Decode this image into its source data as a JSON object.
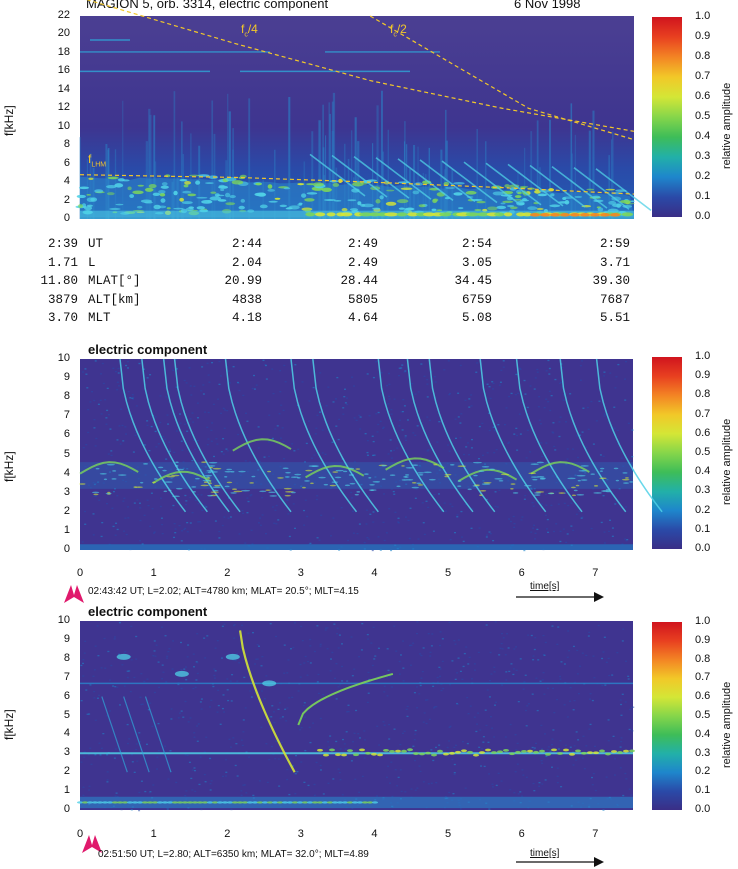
{
  "figure": {
    "title": "MAGION 5, orb. 3314, electric component",
    "date": "6 Nov 1998",
    "colorbar": {
      "label": "relative amplitude",
      "ticks": [
        "1.0",
        "0.9",
        "0.8",
        "0.7",
        "0.6",
        "0.5",
        "0.4",
        "0.3",
        "0.2",
        "0.1",
        "0.0"
      ],
      "colors": [
        "#d0141e",
        "#e84020",
        "#f38424",
        "#f2c828",
        "#d4e636",
        "#86d64a",
        "#3ebd58",
        "#22b0a8",
        "#1e86cc",
        "#2a4aa8",
        "#3a2e86"
      ]
    },
    "colors": {
      "background": "#3c2f86",
      "trace_cyan": "#4fd0e6",
      "trace_green": "#7cd65a",
      "trace_yellow": "#f2d42a",
      "dashed_line": "#f2c72a",
      "arrow": "#e0196c"
    }
  },
  "ephemeris": {
    "rows": [
      {
        "name": "UT",
        "first": "2:39",
        "values": [
          "2:44",
          "2:49",
          "2:54",
          "2:59"
        ]
      },
      {
        "name": "L",
        "first": "1.71",
        "values": [
          "2.04",
          "2.49",
          "3.05",
          "3.71"
        ]
      },
      {
        "name": "MLAT[°]",
        "first": "11.80",
        "values": [
          "20.99",
          "28.44",
          "34.45",
          "39.30"
        ]
      },
      {
        "name": "ALT[km]",
        "first": "3879",
        "values": [
          "4838",
          "5805",
          "6759",
          "7687"
        ]
      },
      {
        "name": "MLT",
        "first": "3.70",
        "values": [
          "4.18",
          "4.64",
          "5.08",
          "5.51"
        ]
      }
    ]
  },
  "panels": {
    "top": {
      "ylabel": "f[kHz]",
      "yticks": [
        "22",
        "20",
        "18",
        "16",
        "14",
        "12",
        "10",
        "8",
        "6",
        "4",
        "2",
        "0"
      ],
      "curve_labels": {
        "fc4_main": "f",
        "fc4_sub": "c",
        "fc4_tail": "/4",
        "fc2_main": "f",
        "fc2_sub": "c",
        "fc2_tail": "/2",
        "flhm_main": "f",
        "flhm_sub": "LHM"
      }
    },
    "mid": {
      "subtitle": "electric component",
      "ylabel": "f[kHz]",
      "yticks": [
        "10",
        "9",
        "8",
        "7",
        "6",
        "5",
        "4",
        "3",
        "2",
        "1",
        "0"
      ],
      "xticks": [
        "0",
        "1",
        "2",
        "3",
        "4",
        "5",
        "6",
        "7"
      ],
      "info": "02:43:42 UT; L=2.02; ALT=4780 km; MLAT= 20.5°; MLT=4.15",
      "time_label": "time[s]"
    },
    "bot": {
      "subtitle": "electric component",
      "ylabel": "f[kHz]",
      "yticks": [
        "10",
        "9",
        "8",
        "7",
        "6",
        "5",
        "4",
        "3",
        "2",
        "1",
        "0"
      ],
      "xticks": [
        "0",
        "1",
        "2",
        "3",
        "4",
        "5",
        "6",
        "7"
      ],
      "info": "02:51:50 UT; L=2.80; ALT=6350 km; MLAT= 32.0°; MLT=4.89",
      "time_label": "time[s]"
    }
  },
  "chart_data": [
    {
      "type": "heatmap",
      "title": "MAGION 5, orb. 3314, electric component",
      "xlabel": "",
      "ylabel": "f[kHz]",
      "ylim": [
        0,
        22
      ],
      "x_ticks_UT": [
        "2:39",
        "2:44",
        "2:49",
        "2:54",
        "2:59"
      ],
      "series": [
        {
          "name": "fc/4",
          "x_min": [
            2.39,
            2.449,
            2.5,
            2.55,
            2.6
          ],
          "y_kHz": [
            24,
            19,
            15,
            12,
            9.5
          ]
        },
        {
          "name": "fc/2",
          "x_min": [
            2.5,
            2.53,
            2.56,
            2.6
          ],
          "y_kHz": [
            22,
            17,
            12,
            8.6
          ]
        },
        {
          "name": "fLHM",
          "x_min": [
            2.39,
            2.45,
            2.5,
            2.55,
            2.6
          ],
          "y_kHz": [
            4.8,
            4.5,
            4.0,
            3.4,
            2.7
          ]
        }
      ]
    },
    {
      "type": "heatmap",
      "title": "electric component",
      "xlabel": "time[s]",
      "ylabel": "f[kHz]",
      "xlim": [
        0,
        7.6
      ],
      "ylim": [
        0,
        10
      ]
    },
    {
      "type": "heatmap",
      "title": "electric component",
      "xlabel": "time[s]",
      "ylabel": "f[kHz]",
      "xlim": [
        0,
        7.6
      ],
      "ylim": [
        0,
        10
      ]
    }
  ]
}
